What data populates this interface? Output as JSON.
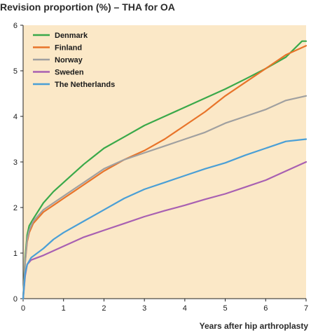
{
  "chart_data": {
    "type": "line",
    "title": "Revision proportion (%) – THA for OA",
    "xlabel": "Years after hip arthroplasty",
    "ylabel": "",
    "xlim": [
      0,
      7
    ],
    "ylim": [
      0,
      6
    ],
    "xticks": [
      0,
      1,
      2,
      3,
      4,
      5,
      6,
      7
    ],
    "yticks": [
      0,
      1,
      2,
      3,
      4,
      5,
      6
    ],
    "grid": false,
    "legend_position": "top-left",
    "background_color": "#fbe8c7",
    "series": [
      {
        "name": "Denmark",
        "color": "#3aa94a",
        "points": [
          [
            0,
            0
          ],
          [
            0.05,
            0.9
          ],
          [
            0.1,
            1.4
          ],
          [
            0.15,
            1.6
          ],
          [
            0.25,
            1.75
          ],
          [
            0.5,
            2.1
          ],
          [
            0.75,
            2.35
          ],
          [
            1,
            2.55
          ],
          [
            1.25,
            2.75
          ],
          [
            1.5,
            2.95
          ],
          [
            2,
            3.3
          ],
          [
            2.5,
            3.55
          ],
          [
            3,
            3.8
          ],
          [
            3.5,
            4.0
          ],
          [
            4,
            4.2
          ],
          [
            4.5,
            4.4
          ],
          [
            5,
            4.6
          ],
          [
            5.5,
            4.82
          ],
          [
            6,
            5.05
          ],
          [
            6.5,
            5.3
          ],
          [
            6.9,
            5.65
          ],
          [
            7,
            5.65
          ]
        ]
      },
      {
        "name": "Finland",
        "color": "#e8742a",
        "points": [
          [
            0,
            0
          ],
          [
            0.05,
            0.8
          ],
          [
            0.1,
            1.25
          ],
          [
            0.15,
            1.45
          ],
          [
            0.25,
            1.65
          ],
          [
            0.5,
            1.9
          ],
          [
            0.75,
            2.05
          ],
          [
            1,
            2.2
          ],
          [
            1.25,
            2.35
          ],
          [
            1.5,
            2.5
          ],
          [
            2,
            2.8
          ],
          [
            2.5,
            3.05
          ],
          [
            3,
            3.25
          ],
          [
            3.5,
            3.5
          ],
          [
            4,
            3.8
          ],
          [
            4.5,
            4.1
          ],
          [
            5,
            4.45
          ],
          [
            5.5,
            4.75
          ],
          [
            6,
            5.05
          ],
          [
            6.5,
            5.35
          ],
          [
            7,
            5.55
          ]
        ]
      },
      {
        "name": "Norway",
        "color": "#a0a0a0",
        "points": [
          [
            0,
            0
          ],
          [
            0.05,
            0.8
          ],
          [
            0.1,
            1.3
          ],
          [
            0.15,
            1.5
          ],
          [
            0.25,
            1.7
          ],
          [
            0.5,
            1.95
          ],
          [
            0.75,
            2.1
          ],
          [
            1,
            2.25
          ],
          [
            1.25,
            2.4
          ],
          [
            1.5,
            2.55
          ],
          [
            2,
            2.85
          ],
          [
            2.5,
            3.05
          ],
          [
            3,
            3.2
          ],
          [
            3.5,
            3.35
          ],
          [
            4,
            3.5
          ],
          [
            4.5,
            3.65
          ],
          [
            5,
            3.85
          ],
          [
            5.5,
            4.0
          ],
          [
            6,
            4.15
          ],
          [
            6.5,
            4.35
          ],
          [
            7,
            4.45
          ]
        ]
      },
      {
        "name": "Sweden",
        "color": "#a860b2",
        "points": [
          [
            0,
            0
          ],
          [
            0.05,
            0.5
          ],
          [
            0.1,
            0.75
          ],
          [
            0.2,
            0.85
          ],
          [
            0.5,
            0.95
          ],
          [
            0.75,
            1.05
          ],
          [
            1,
            1.15
          ],
          [
            1.5,
            1.35
          ],
          [
            2,
            1.5
          ],
          [
            2.5,
            1.65
          ],
          [
            3,
            1.8
          ],
          [
            3.5,
            1.93
          ],
          [
            4,
            2.05
          ],
          [
            4.5,
            2.18
          ],
          [
            5,
            2.3
          ],
          [
            5.5,
            2.45
          ],
          [
            6,
            2.6
          ],
          [
            6.5,
            2.8
          ],
          [
            7,
            3.0
          ]
        ]
      },
      {
        "name": "The Netherlands",
        "color": "#4a9fd6",
        "points": [
          [
            0,
            0
          ],
          [
            0.05,
            0.55
          ],
          [
            0.1,
            0.75
          ],
          [
            0.2,
            0.9
          ],
          [
            0.5,
            1.1
          ],
          [
            0.75,
            1.3
          ],
          [
            1,
            1.45
          ],
          [
            1.5,
            1.7
          ],
          [
            2,
            1.95
          ],
          [
            2.5,
            2.2
          ],
          [
            3,
            2.4
          ],
          [
            3.5,
            2.55
          ],
          [
            4,
            2.7
          ],
          [
            4.5,
            2.85
          ],
          [
            5,
            2.98
          ],
          [
            5.5,
            3.15
          ],
          [
            6,
            3.3
          ],
          [
            6.5,
            3.45
          ],
          [
            7,
            3.5
          ]
        ]
      }
    ]
  }
}
